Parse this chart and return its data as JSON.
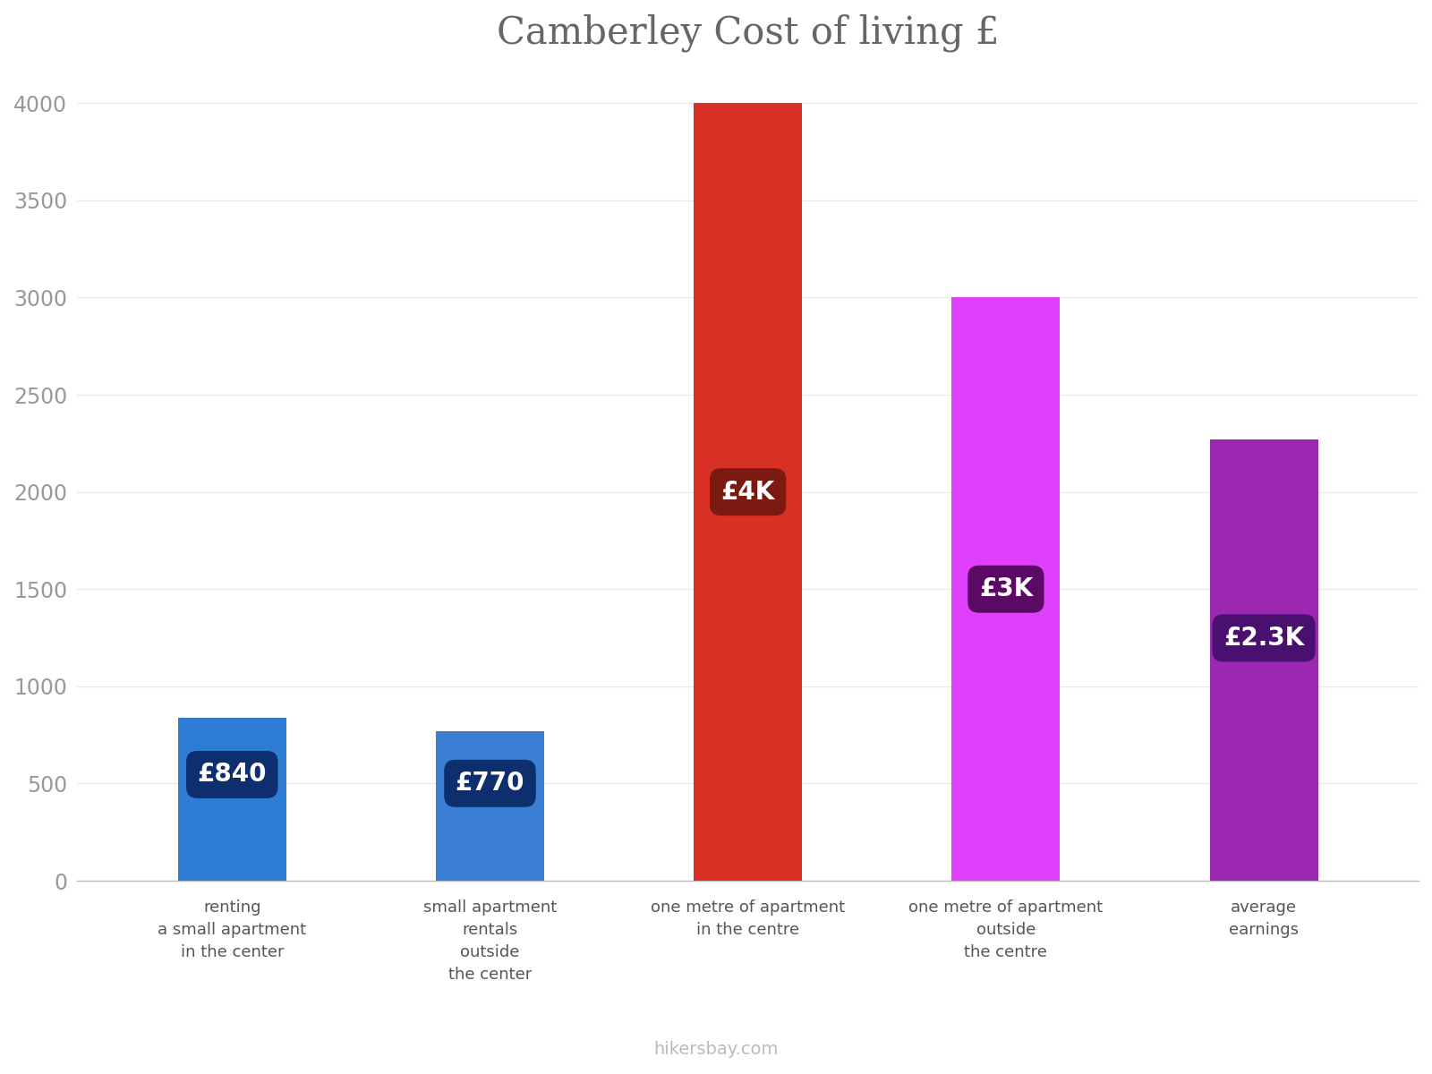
{
  "title": "Camberley Cost of living £",
  "categories": [
    "renting\na small apartment\nin the center",
    "small apartment\nrentals\noutside\nthe center",
    "one metre of apartment\nin the centre",
    "one metre of apartment\noutside\nthe centre",
    "average\nearnings"
  ],
  "values": [
    840,
    770,
    4000,
    3000,
    2270
  ],
  "bar_colors": [
    "#2e7dd4",
    "#3b7fd4",
    "#d93025",
    "#e040fb",
    "#9c27b0"
  ],
  "label_texts": [
    "£840",
    "£770",
    "£4K",
    "£3K",
    "£2.3K"
  ],
  "label_bg_colors": [
    "#0d2f6e",
    "#0d2f6e",
    "#7a1a10",
    "#5a0a65",
    "#4a1070"
  ],
  "ylim": [
    0,
    4150
  ],
  "yticks": [
    0,
    500,
    1000,
    1500,
    2000,
    2500,
    3000,
    3500,
    4000
  ],
  "background_color": "#ffffff",
  "footer_text": "hikersbay.com",
  "title_fontsize": 30,
  "tick_fontsize": 17,
  "label_fontsize": 20,
  "category_fontsize": 13,
  "bar_width": 0.42
}
